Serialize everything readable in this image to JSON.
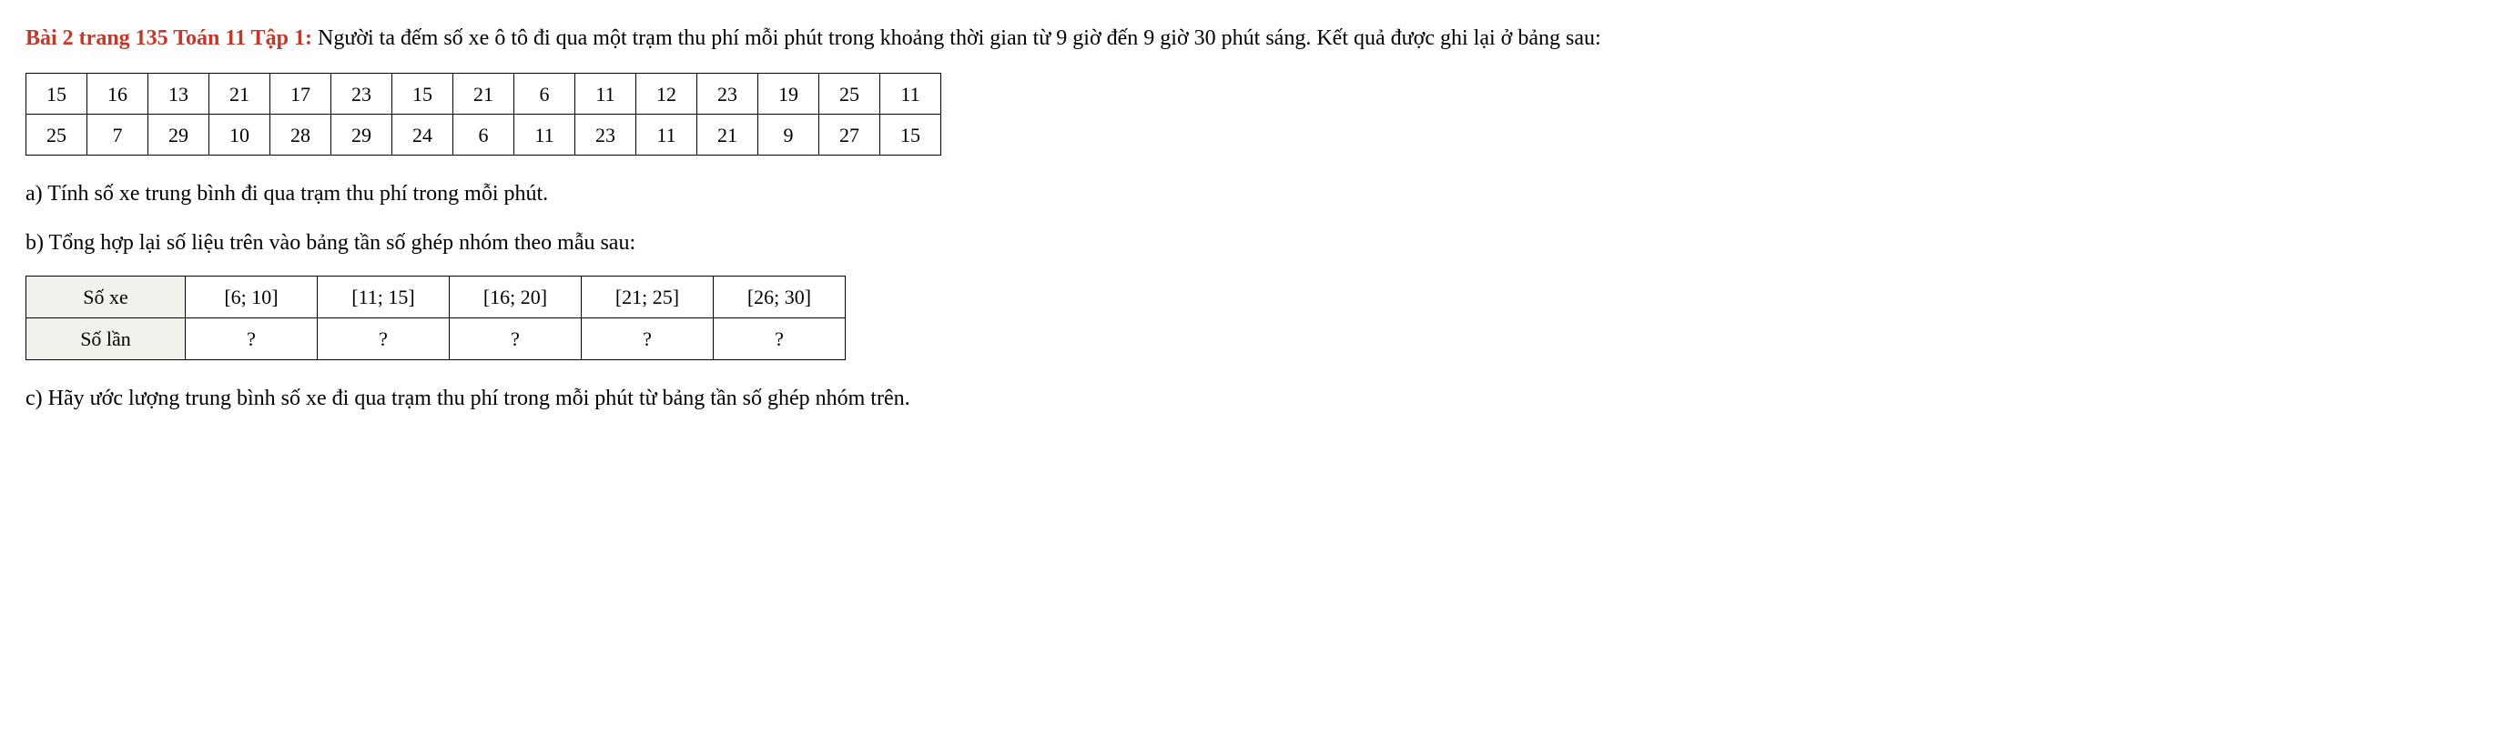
{
  "heading": {
    "label": "Bài 2 trang 135 Toán 11 Tập 1:",
    "text": " Người ta đếm số xe ô tô đi qua một trạm thu phí mỗi phút trong khoảng thời gian từ 9 giờ đến 9 giờ 30 phút sáng. Kết quả được ghi lại ở bảng sau:"
  },
  "dataTable": {
    "rows": [
      [
        "15",
        "16",
        "13",
        "21",
        "17",
        "23",
        "15",
        "21",
        "6",
        "11",
        "12",
        "23",
        "19",
        "25",
        "11"
      ],
      [
        "25",
        "7",
        "29",
        "10",
        "28",
        "29",
        "24",
        "6",
        "11",
        "23",
        "11",
        "21",
        "9",
        "27",
        "15"
      ]
    ]
  },
  "qa": "a) Tính số xe trung bình đi qua trạm thu phí trong mỗi phút.",
  "qb": "b) Tổng hợp lại số liệu trên vào bảng tần số ghép nhóm theo mẫu sau:",
  "freqTable": {
    "row1": {
      "header": "Số xe",
      "cells": [
        "[6; 10]",
        "[11; 15]",
        "[16; 20]",
        "[21; 25]",
        "[26; 30]"
      ]
    },
    "row2": {
      "header": "Số lần",
      "cells": [
        "?",
        "?",
        "?",
        "?",
        "?"
      ]
    }
  },
  "qc": "c) Hãy ước lượng trung bình số xe đi qua trạm thu phí trong mỗi phút từ bảng tần số ghép nhóm trên."
}
